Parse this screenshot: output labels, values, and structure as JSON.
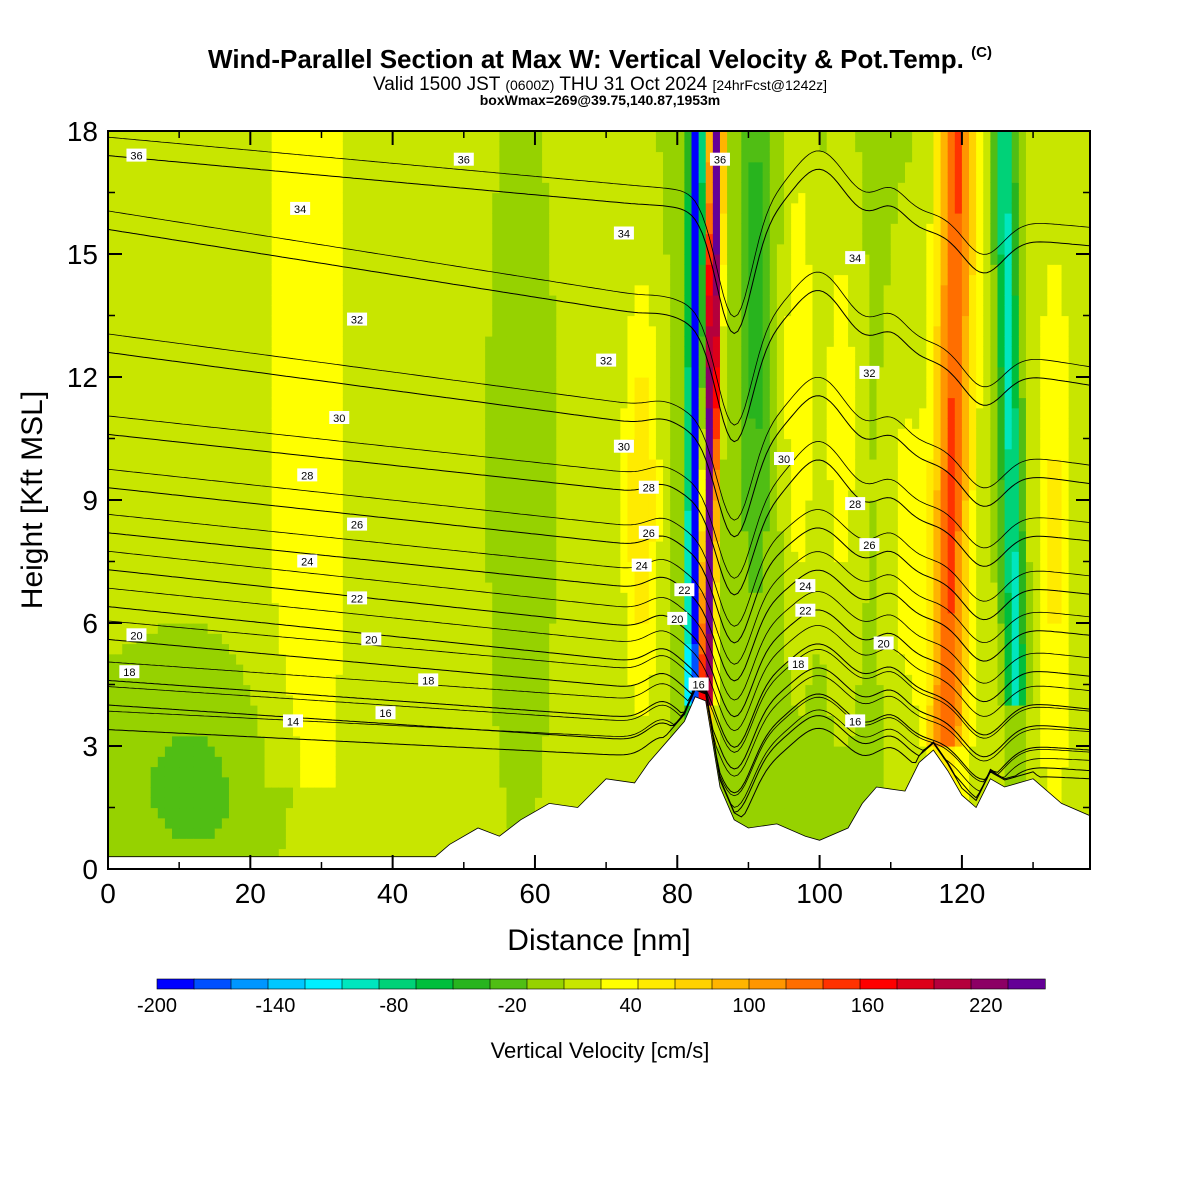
{
  "header": {
    "title": "Wind-Parallel Section at Max W: Vertical Velocity & Pot.Temp.",
    "title_mark": "(C)",
    "valid_prefix": "Valid 1500 JST",
    "valid_utc": "(0600Z)",
    "valid_date": "THU 31 Oct 2024",
    "forecast": "[24hrFcst@1242z]",
    "boxwmax": "boxWmax=269@39.75,140.87,1953m"
  },
  "chart_data": {
    "type": "heatmap",
    "xlabel": "Distance [nm]",
    "ylabel": "Height [Kft MSL]",
    "xlim": [
      0,
      138
    ],
    "ylim": [
      0,
      18
    ],
    "x_ticks": [
      0,
      20,
      40,
      60,
      80,
      100,
      120
    ],
    "y_ticks": [
      0,
      3,
      6,
      9,
      12,
      15,
      18
    ],
    "colorbar": {
      "label": "Vertical Velocity [cm/s]",
      "range": [
        -200,
        250
      ],
      "step": 20,
      "tick_labels": [
        "-200",
        "-140",
        "-80",
        "-20",
        "40",
        "100",
        "160",
        "220"
      ],
      "colors": [
        "#0000ff",
        "#0050ff",
        "#0096ff",
        "#00c8ff",
        "#00f0ff",
        "#00e6be",
        "#00d278",
        "#00be3c",
        "#28b41e",
        "#50be14",
        "#96d200",
        "#c8e600",
        "#ffff00",
        "#ffeb00",
        "#ffd200",
        "#ffb400",
        "#ff9600",
        "#ff6e00",
        "#ff3200",
        "#ff0000",
        "#dc0019",
        "#b4003c",
        "#8c0064",
        "#640096"
      ]
    },
    "terrain_kft": [
      [
        0,
        0.3
      ],
      [
        46,
        0.3
      ],
      [
        48,
        0.6
      ],
      [
        52,
        1.0
      ],
      [
        55,
        0.8
      ],
      [
        58,
        1.2
      ],
      [
        62,
        1.6
      ],
      [
        66,
        1.5
      ],
      [
        70,
        2.2
      ],
      [
        74,
        2.1
      ],
      [
        76,
        2.6
      ],
      [
        79,
        3.2
      ],
      [
        81,
        3.6
      ],
      [
        82.5,
        4.2
      ],
      [
        84,
        4.1
      ],
      [
        86,
        2.0
      ],
      [
        88,
        1.2
      ],
      [
        90,
        1.0
      ],
      [
        94,
        1.1
      ],
      [
        98,
        0.8
      ],
      [
        100,
        0.7
      ],
      [
        104,
        1.0
      ],
      [
        106,
        1.6
      ],
      [
        108,
        2.0
      ],
      [
        112,
        1.9
      ],
      [
        114,
        2.6
      ],
      [
        116,
        2.9
      ],
      [
        118,
        2.4
      ],
      [
        120,
        1.8
      ],
      [
        122,
        1.5
      ],
      [
        124,
        2.2
      ],
      [
        126,
        2.0
      ],
      [
        130,
        2.2
      ],
      [
        134,
        1.6
      ],
      [
        138,
        1.3
      ]
    ],
    "theta_contours": [
      {
        "label": "14",
        "y0": 3.4,
        "y1": 2.2
      },
      {
        "label": "16",
        "y0": 4.0,
        "y1": 2.4
      },
      {
        "label": "18",
        "y0": 4.6,
        "y1": 2.9
      },
      {
        "label": "20",
        "y0": 5.6,
        "y1": 3.4
      },
      {
        "label": "22",
        "y0": 6.4,
        "y1": 3.9
      },
      {
        "label": "24",
        "y0": 7.3,
        "y1": 4.7
      },
      {
        "label": "26",
        "y0": 8.2,
        "y1": 5.7
      },
      {
        "label": "28",
        "y0": 9.3,
        "y1": 6.7
      },
      {
        "label": "30",
        "y0": 10.6,
        "y1": 8.0
      },
      {
        "label": "32",
        "y0": 12.6,
        "y1": 9.4
      },
      {
        "label": "34",
        "y0": 15.6,
        "y1": 11.8
      },
      {
        "label": "36",
        "y0": 17.4,
        "y1": 15.2
      }
    ],
    "theta_labels": [
      {
        "text": "36",
        "x": 4,
        "y": 17.4
      },
      {
        "text": "36",
        "x": 50,
        "y": 17.3
      },
      {
        "text": "36",
        "x": 86,
        "y": 17.3
      },
      {
        "text": "34",
        "x": 27,
        "y": 16.1
      },
      {
        "text": "34",
        "x": 72.5,
        "y": 15.5
      },
      {
        "text": "34",
        "x": 105,
        "y": 14.9
      },
      {
        "text": "32",
        "x": 35,
        "y": 13.4
      },
      {
        "text": "32",
        "x": 70,
        "y": 12.4
      },
      {
        "text": "32",
        "x": 107,
        "y": 12.1
      },
      {
        "text": "30",
        "x": 32.5,
        "y": 11.0
      },
      {
        "text": "30",
        "x": 72.5,
        "y": 10.3
      },
      {
        "text": "30",
        "x": 95,
        "y": 10.0
      },
      {
        "text": "28",
        "x": 28,
        "y": 9.6
      },
      {
        "text": "28",
        "x": 76,
        "y": 9.3
      },
      {
        "text": "28",
        "x": 105,
        "y": 8.9
      },
      {
        "text": "26",
        "x": 35,
        "y": 8.4
      },
      {
        "text": "26",
        "x": 76,
        "y": 8.2
      },
      {
        "text": "26",
        "x": 107,
        "y": 7.9
      },
      {
        "text": "24",
        "x": 28,
        "y": 7.5
      },
      {
        "text": "24",
        "x": 75,
        "y": 7.4
      },
      {
        "text": "24",
        "x": 98,
        "y": 6.9
      },
      {
        "text": "22",
        "x": 35,
        "y": 6.6
      },
      {
        "text": "22",
        "x": 81,
        "y": 6.8
      },
      {
        "text": "22",
        "x": 98,
        "y": 6.3
      },
      {
        "text": "20",
        "x": 4,
        "y": 5.7
      },
      {
        "text": "20",
        "x": 37,
        "y": 5.6
      },
      {
        "text": "20",
        "x": 80,
        "y": 6.1
      },
      {
        "text": "20",
        "x": 109,
        "y": 5.5
      },
      {
        "text": "18",
        "x": 3,
        "y": 4.8
      },
      {
        "text": "18",
        "x": 45,
        "y": 4.6
      },
      {
        "text": "18",
        "x": 97,
        "y": 5.0
      },
      {
        "text": "16",
        "x": 39,
        "y": 3.8
      },
      {
        "text": "16",
        "x": 83,
        "y": 4.5
      },
      {
        "text": "16",
        "x": 105,
        "y": 3.6
      },
      {
        "text": "14",
        "x": 26,
        "y": 3.6
      }
    ]
  }
}
